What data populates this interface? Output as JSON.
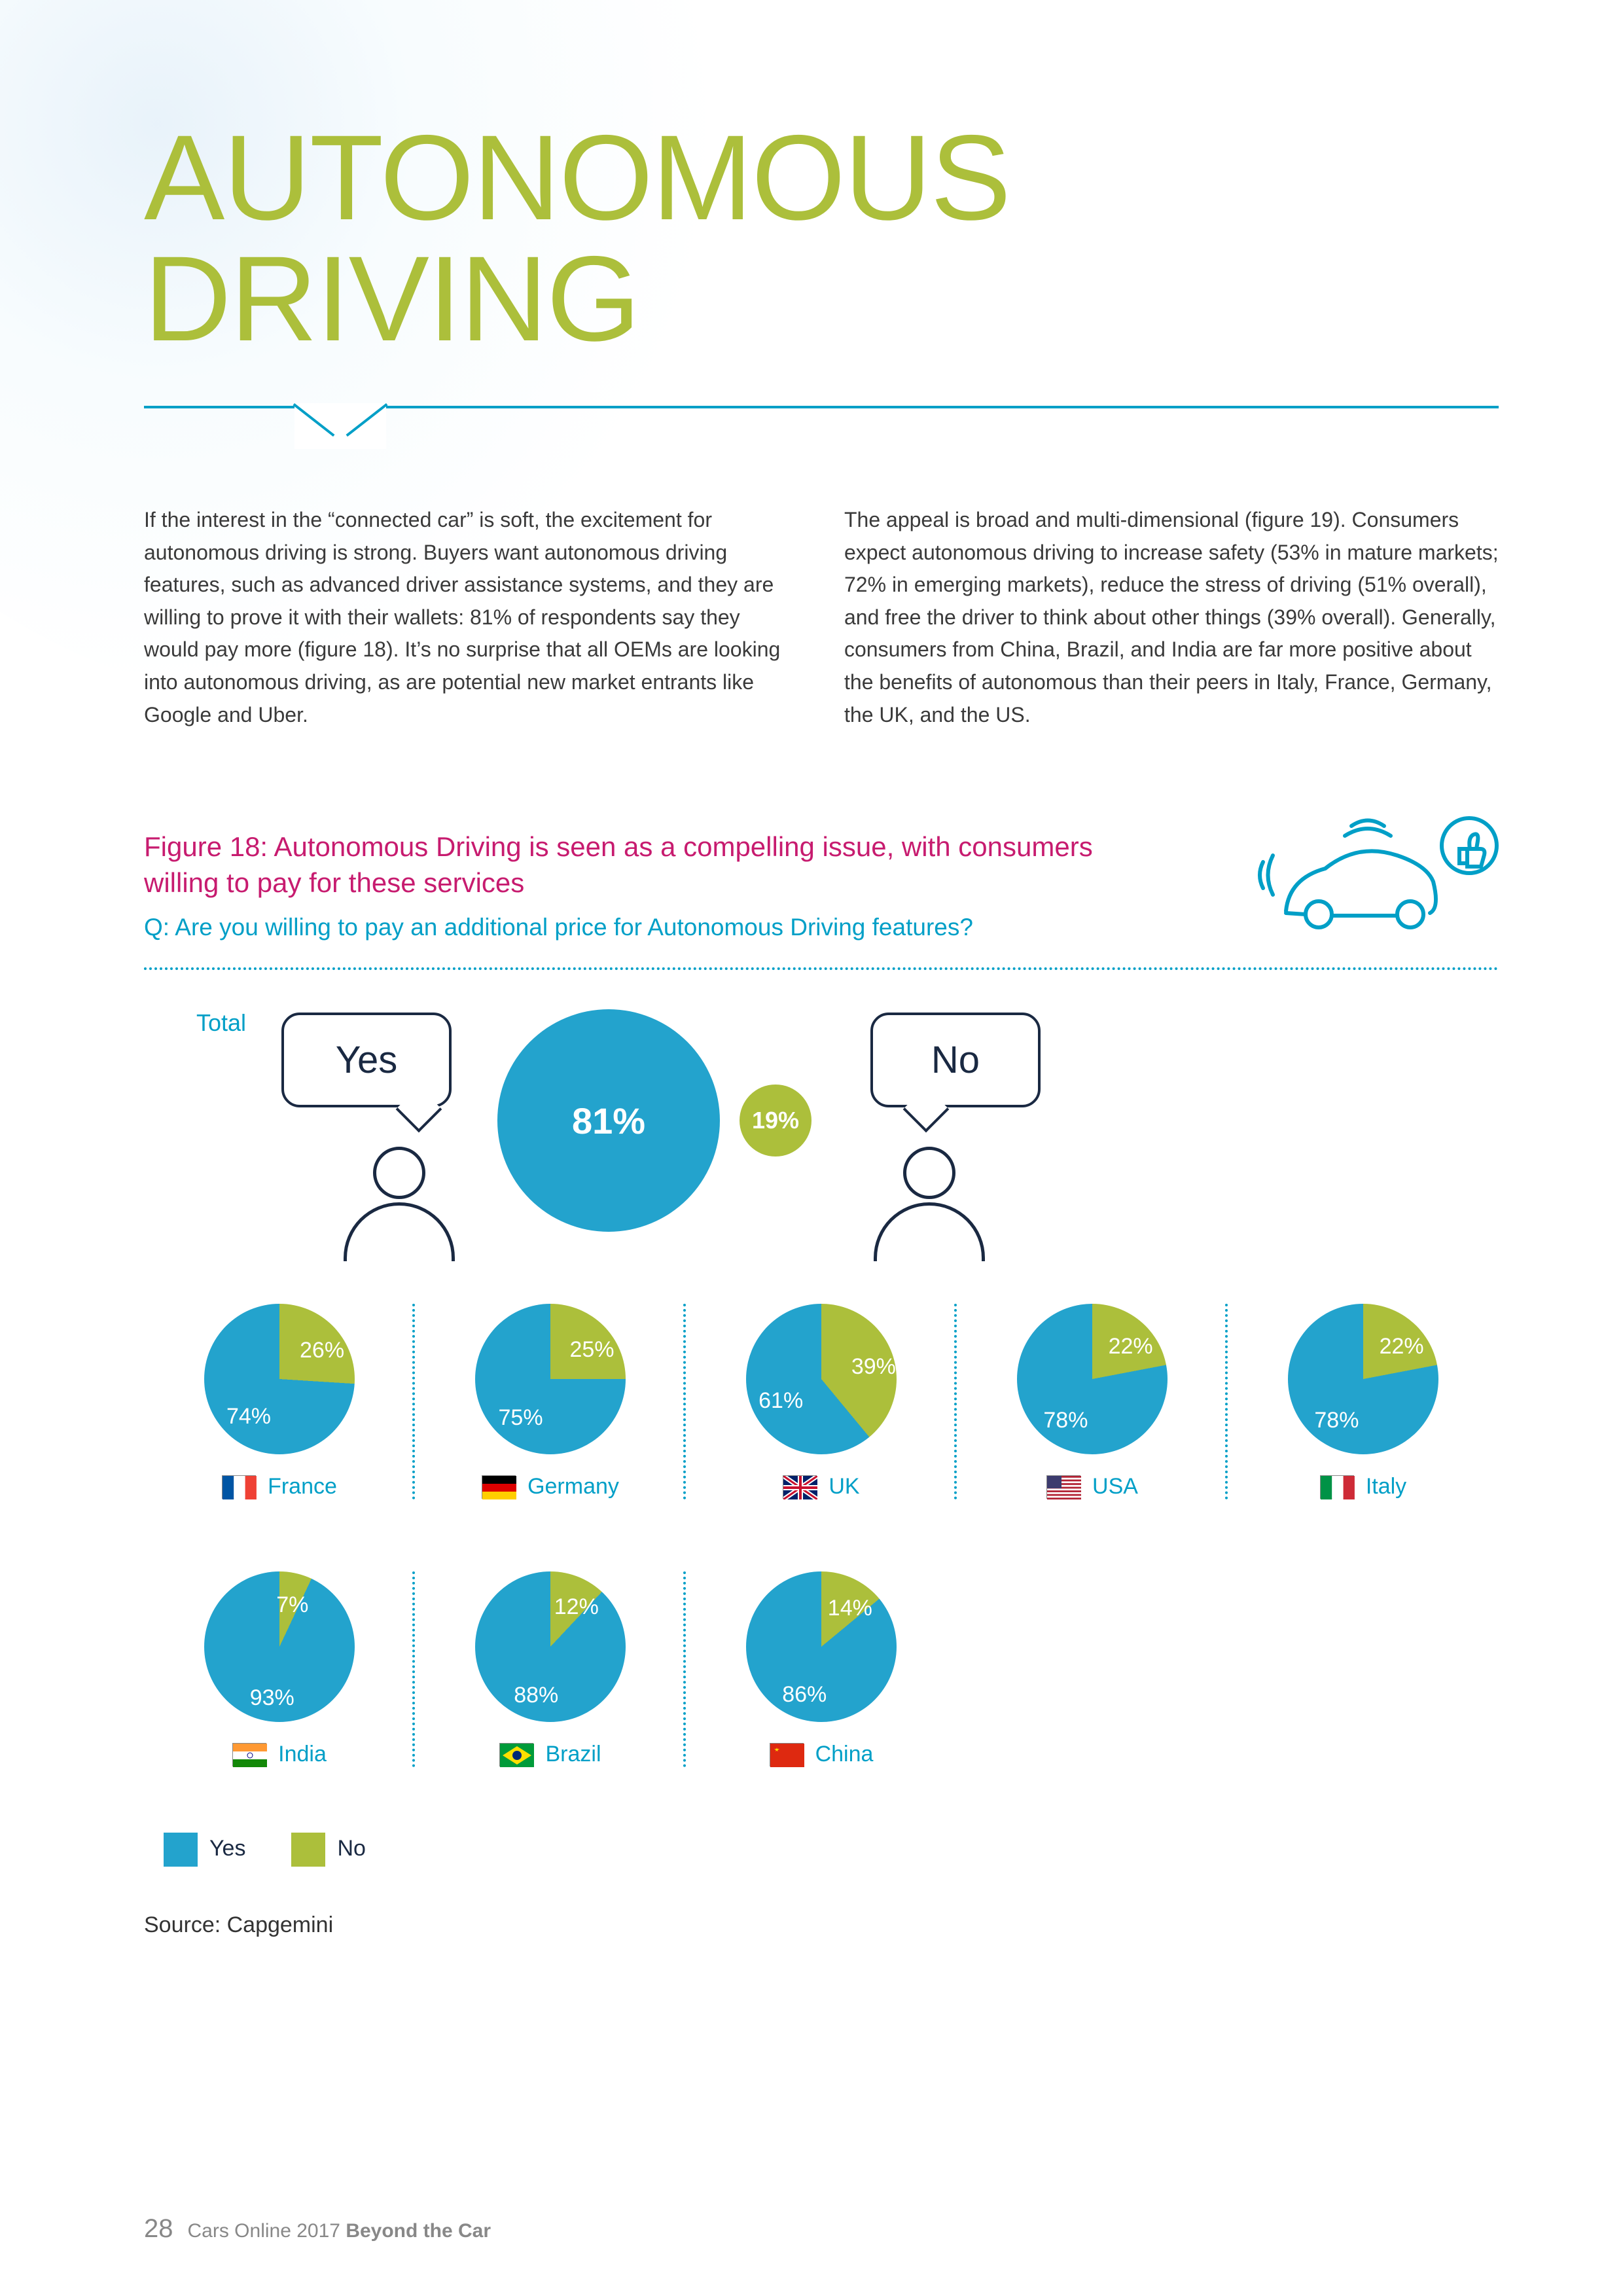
{
  "title": "AUTONOMOUS DRIVING",
  "body": {
    "left": "If the interest in the “connected car” is soft, the excitement for autonomous driving is strong. Buyers want autonomous driving features, such as advanced driver assistance systems, and they are willing to prove it with their wallets: 81% of respondents say they would pay more (figure 18). It’s no surprise that all OEMs are looking into autonomous driving, as are potential new market entrants like Google and Uber.",
    "right": "The appeal is broad and multi-dimensional (figure 19). Consumers expect autonomous driving to increase safety (53% in mature markets; 72% in emerging markets), reduce the stress of driving (51% overall), and free the driver to think about other things (39% overall). Generally, consumers from China, Brazil, and India are far more positive about the benefits of autonomous than their peers in Italy, France, Germany, the UK, and the US."
  },
  "figure": {
    "title": "Figure 18: Autonomous Driving is seen as a compelling issue, with consumers willing to pay for these services",
    "question": "Q: Are you willing to pay an additional price for Autonomous Driving features?",
    "colors": {
      "yes": "#23a3cd",
      "no": "#acbf3b",
      "accent": "#009fc7",
      "pink": "#c71b6f",
      "ink": "#1a2942"
    },
    "total": {
      "label": "Total",
      "yes_label": "Yes",
      "no_label": "No",
      "yes_pct": 81,
      "no_pct": 19,
      "yes_text": "81%",
      "no_text": "19%"
    },
    "countries": [
      {
        "name": "France",
        "yes": 74,
        "no": 26,
        "yes_text": "74%",
        "no_text": "26%",
        "flag": "france"
      },
      {
        "name": "Germany",
        "yes": 75,
        "no": 25,
        "yes_text": "75%",
        "no_text": "25%",
        "flag": "germany"
      },
      {
        "name": "UK",
        "yes": 61,
        "no": 39,
        "yes_text": "61%",
        "no_text": "39%",
        "flag": "uk"
      },
      {
        "name": "USA",
        "yes": 78,
        "no": 22,
        "yes_text": "78%",
        "no_text": "22%",
        "flag": "usa"
      },
      {
        "name": "Italy",
        "yes": 78,
        "no": 22,
        "yes_text": "78%",
        "no_text": "22%",
        "flag": "italy"
      },
      {
        "name": "India",
        "yes": 93,
        "no": 7,
        "yes_text": "93%",
        "no_text": "7%",
        "flag": "india"
      },
      {
        "name": "Brazil",
        "yes": 88,
        "no": 12,
        "yes_text": "88%",
        "no_text": "12%",
        "flag": "brazil"
      },
      {
        "name": "China",
        "yes": 86,
        "no": 14,
        "yes_text": "86%",
        "no_text": "14%",
        "flag": "china"
      }
    ],
    "legend": {
      "yes": "Yes",
      "no": "No"
    },
    "source": "Source: Capgemini"
  },
  "footer": {
    "page": "28",
    "series": "Cars Online 2017",
    "subtitle": "Beyond the Car"
  }
}
